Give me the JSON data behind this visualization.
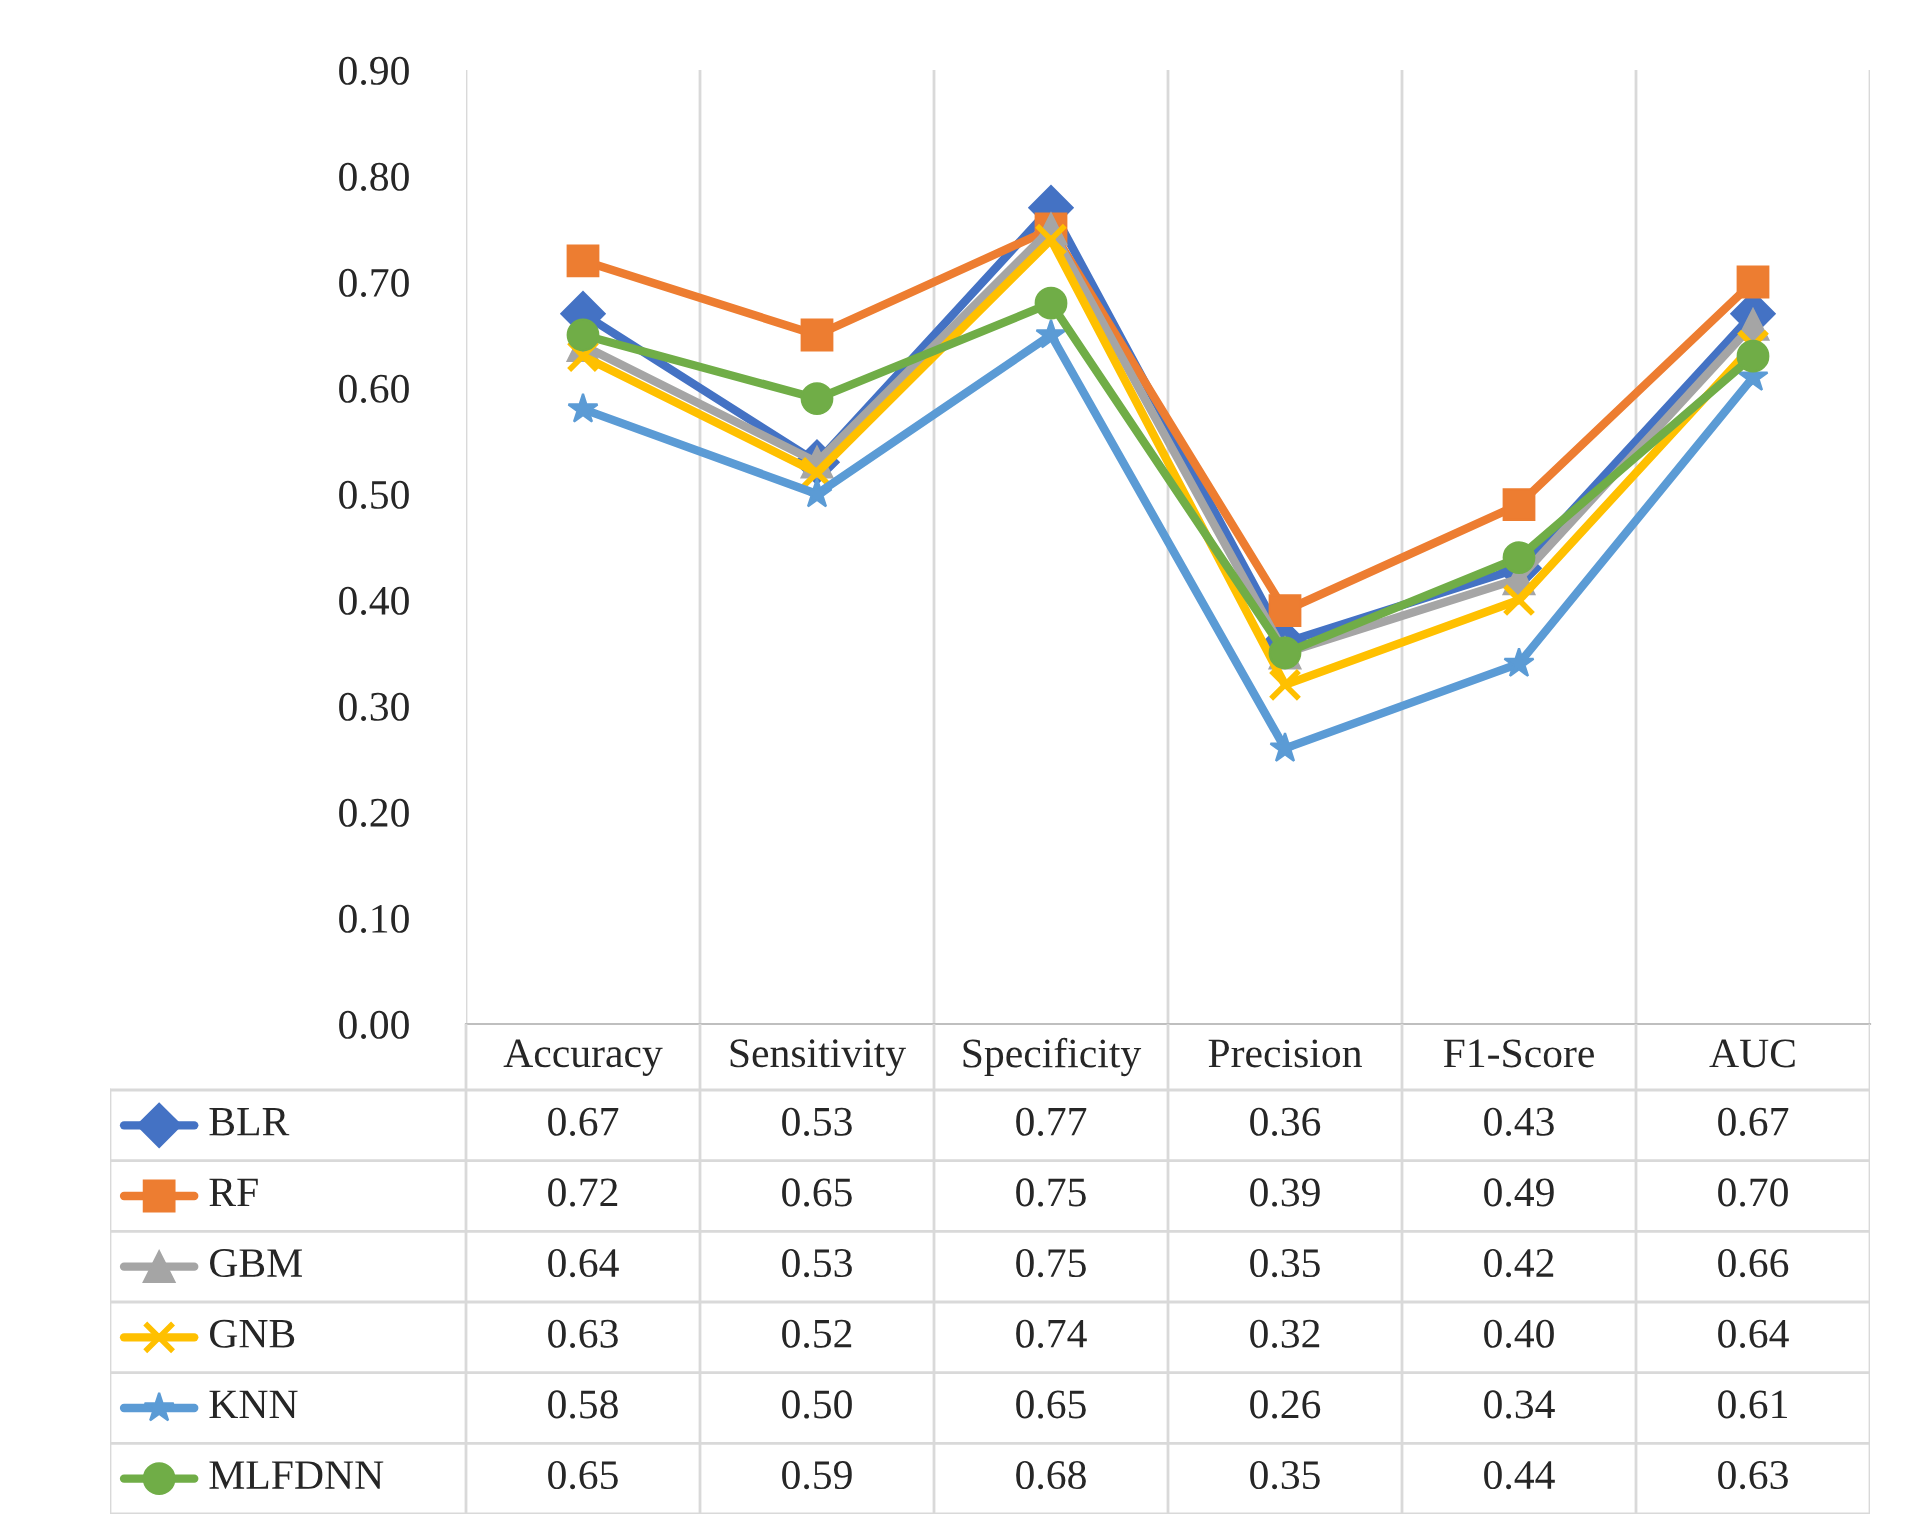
{
  "chart_data": {
    "type": "line",
    "categories": [
      "Accuracy",
      "Sensitivity",
      "Specificity",
      "Precision",
      "F1-Score",
      "AUC"
    ],
    "series": [
      {
        "name": "BLR",
        "color": "#4472c4",
        "marker": "diamond",
        "values": [
          0.67,
          0.53,
          0.77,
          0.36,
          0.43,
          0.67
        ],
        "value_labels": [
          "0.67",
          "0.53",
          "0.77",
          "0.36",
          "0.43",
          "0.67"
        ]
      },
      {
        "name": "RF",
        "color": "#ed7d31",
        "marker": "square",
        "values": [
          0.72,
          0.65,
          0.75,
          0.39,
          0.49,
          0.7
        ],
        "value_labels": [
          "0.72",
          "0.65",
          "0.75",
          "0.39",
          "0.49",
          "0.70"
        ]
      },
      {
        "name": "GBM",
        "color": "#a5a5a5",
        "marker": "triangle",
        "values": [
          0.64,
          0.53,
          0.75,
          0.35,
          0.42,
          0.66
        ],
        "value_labels": [
          "0.64",
          "0.53",
          "0.75",
          "0.35",
          "0.42",
          "0.66"
        ]
      },
      {
        "name": "GNB",
        "color": "#ffc000",
        "marker": "cross",
        "values": [
          0.63,
          0.52,
          0.74,
          0.32,
          0.4,
          0.64
        ],
        "value_labels": [
          "0.63",
          "0.52",
          "0.74",
          "0.32",
          "0.40",
          "0.64"
        ]
      },
      {
        "name": "KNN",
        "color": "#5b9bd5",
        "marker": "star",
        "values": [
          0.58,
          0.5,
          0.65,
          0.26,
          0.34,
          0.61
        ],
        "value_labels": [
          "0.58",
          "0.50",
          "0.65",
          "0.26",
          "0.34",
          "0.61"
        ]
      },
      {
        "name": "MLFDNN",
        "color": "#70ad47",
        "marker": "circle",
        "values": [
          0.65,
          0.59,
          0.68,
          0.35,
          0.44,
          0.63
        ],
        "value_labels": [
          "0.65",
          "0.59",
          "0.68",
          "0.35",
          "0.44",
          "0.63"
        ]
      }
    ],
    "ylim": [
      0,
      0.9
    ],
    "yticks": [
      {
        "value": 0,
        "label": "0.00"
      },
      {
        "value": 0.1,
        "label": "0.10"
      },
      {
        "value": 0.2,
        "label": "0.20"
      },
      {
        "value": 0.3,
        "label": "0.30"
      },
      {
        "value": 0.4,
        "label": "0.40"
      },
      {
        "value": 0.5,
        "label": "0.50"
      },
      {
        "value": 0.6,
        "label": "0.60"
      },
      {
        "value": 0.7,
        "label": "0.70"
      },
      {
        "value": 0.8,
        "label": "0.80"
      },
      {
        "value": 0.9,
        "label": "0.90"
      }
    ],
    "grid": "x",
    "legend": "bottom",
    "line_style": "solid"
  }
}
